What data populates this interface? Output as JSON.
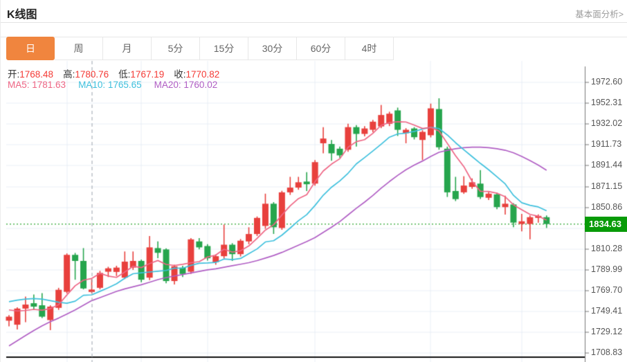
{
  "header": {
    "title": "K线图",
    "link": "基本面分析>"
  },
  "tabs": {
    "items": [
      "日",
      "周",
      "月",
      "5分",
      "15分",
      "30分",
      "60分",
      "4时"
    ],
    "active_index": 0
  },
  "quote": {
    "items": [
      {
        "label": "开:",
        "value": "1768.48"
      },
      {
        "label": "高:",
        "value": "1780.76"
      },
      {
        "label": "低:",
        "value": "1767.19"
      },
      {
        "label": "收:",
        "value": "1770.82"
      }
    ],
    "value_color": "#f43a35"
  },
  "ma_legend": [
    {
      "key": "ma5",
      "label": "MA5:",
      "value": "1781.63",
      "color": "#ee6584"
    },
    {
      "key": "ma10",
      "label": "MA10:",
      "value": "1765.65",
      "color": "#3ec0dd"
    },
    {
      "key": "ma20",
      "label": "MA20:",
      "value": "1760.02",
      "color": "#b05ec4"
    }
  ],
  "chart_data": {
    "type": "candlestick",
    "title": "K线图",
    "y_ticks": [
      1972.6,
      1952.31,
      1932.02,
      1911.73,
      1891.44,
      1871.15,
      1850.86,
      1830.57,
      1810.28,
      1789.99,
      1769.7,
      1749.41,
      1729.12,
      1708.83
    ],
    "ylim": [
      1700,
      1980
    ],
    "current_price": 1834.63,
    "crosshair_index": 10,
    "vgrid_indices": [
      7,
      16,
      24,
      37,
      51,
      62
    ],
    "grid": "on",
    "colors": {
      "up": "#e8403d",
      "down": "#26a54d",
      "ma5": "#ee6584",
      "ma10": "#3ec0dd",
      "ma20": "#b05ec4",
      "grid": "#e8eef6",
      "axis": "#777777",
      "tick_label": "#555555",
      "price_line": "#4db34f",
      "badge_bg": "#089b08",
      "badge_text": "#ffffff",
      "crosshair": "#9aa2ac",
      "base_line": "#111111",
      "active_tab": "#f0853e"
    },
    "candles_format": [
      "open",
      "high",
      "low",
      "close"
    ],
    "candles": [
      [
        1740.5,
        1746,
        1735,
        1744.4
      ],
      [
        1736.6,
        1753.5,
        1732,
        1752.3
      ],
      [
        1752.3,
        1764,
        1739,
        1756.2
      ],
      [
        1757.5,
        1766,
        1751,
        1754.2
      ],
      [
        1755.5,
        1767.3,
        1743,
        1744.4
      ],
      [
        1741.1,
        1755.5,
        1731.3,
        1754.2
      ],
      [
        1753,
        1772.5,
        1751,
        1770.6
      ],
      [
        1768.6,
        1806,
        1767,
        1804.6
      ],
      [
        1804.6,
        1806.5,
        1780.4,
        1798.7
      ],
      [
        1798.7,
        1811.2,
        1771,
        1771.9
      ],
      [
        1768.48,
        1780.76,
        1767.19,
        1770.82
      ],
      [
        1772.5,
        1789,
        1771,
        1787
      ],
      [
        1788.2,
        1793,
        1783,
        1791.5
      ],
      [
        1788,
        1794,
        1784,
        1792.2
      ],
      [
        1782.4,
        1807.9,
        1781,
        1798
      ],
      [
        1792.2,
        1807.9,
        1790,
        1798.7
      ],
      [
        1798.7,
        1800,
        1778,
        1780.4
      ],
      [
        1782.4,
        1823,
        1780,
        1811.9
      ],
      [
        1811.2,
        1817.7,
        1801.3,
        1806.6
      ],
      [
        1809.9,
        1811,
        1777,
        1779.1
      ],
      [
        1779.1,
        1795,
        1775.8,
        1793.5
      ],
      [
        1792.2,
        1794,
        1783,
        1786
      ],
      [
        1788.2,
        1821,
        1786,
        1819.7
      ],
      [
        1817.7,
        1821,
        1810,
        1811.9
      ],
      [
        1813.2,
        1815,
        1799,
        1801.3
      ],
      [
        1797.4,
        1805,
        1795,
        1803.3
      ],
      [
        1803.3,
        1834.1,
        1801,
        1814.5
      ],
      [
        1814.5,
        1816,
        1798.7,
        1805.3
      ],
      [
        1805.3,
        1820,
        1803,
        1818.4
      ],
      [
        1817.7,
        1831.5,
        1815,
        1824.9
      ],
      [
        1824.9,
        1842,
        1823,
        1840.6
      ],
      [
        1832.8,
        1864.2,
        1830,
        1854.4
      ],
      [
        1854.4,
        1856,
        1825,
        1831.5
      ],
      [
        1830.8,
        1867,
        1829,
        1865.5
      ],
      [
        1865.5,
        1880.6,
        1863,
        1870.1
      ],
      [
        1870.1,
        1880.6,
        1868,
        1875.3
      ],
      [
        1876,
        1885.1,
        1866.8,
        1873.4
      ],
      [
        1874,
        1897,
        1872,
        1894.9
      ],
      [
        1913.3,
        1929,
        1903.5,
        1917.9
      ],
      [
        1912.6,
        1916.5,
        1896.3,
        1903.5
      ],
      [
        1908,
        1910,
        1899,
        1901.5
      ],
      [
        1907,
        1932.3,
        1905,
        1929
      ],
      [
        1929,
        1931,
        1910,
        1922.4
      ],
      [
        1922.4,
        1930,
        1920,
        1927.7
      ],
      [
        1926.4,
        1936,
        1924,
        1934.3
      ],
      [
        1929.7,
        1950.6,
        1928,
        1940.8
      ],
      [
        1932.3,
        1944,
        1930,
        1942.1
      ],
      [
        1945.3,
        1948,
        1920.4,
        1926.4
      ],
      [
        1923.1,
        1928,
        1913.3,
        1926.4
      ],
      [
        1927.7,
        1929,
        1917,
        1919.2
      ],
      [
        1916.5,
        1926,
        1896.9,
        1924.4
      ],
      [
        1921.1,
        1951.9,
        1919,
        1947.3
      ],
      [
        1946.6,
        1957.1,
        1907,
        1909.4
      ],
      [
        1908,
        1910,
        1861,
        1865.5
      ],
      [
        1866.8,
        1880.6,
        1857,
        1858.9
      ],
      [
        1865.5,
        1881.2,
        1864,
        1872.1
      ],
      [
        1870.8,
        1879,
        1869,
        1875.3
      ],
      [
        1874,
        1887.1,
        1859,
        1860.9
      ],
      [
        1860.2,
        1866,
        1858,
        1864.2
      ],
      [
        1863.5,
        1865,
        1849,
        1851.1
      ],
      [
        1851.1,
        1862.2,
        1843.9,
        1854.4
      ],
      [
        1853.7,
        1855,
        1831.5,
        1836
      ],
      [
        1834.7,
        1844.5,
        1827.5,
        1837.3
      ],
      [
        1834.7,
        1843,
        1819.7,
        1841.3
      ],
      [
        1840.6,
        1844,
        1836,
        1842.6
      ],
      [
        1841.3,
        1843,
        1830.8,
        1834.63
      ]
    ],
    "ma5": [
      1751,
      1750,
      1750.5,
      1751.5,
      1750.7,
      1752.3,
      1756,
      1765.6,
      1774.5,
      1780,
      1781.63,
      1786.6,
      1784,
      1782.7,
      1787.9,
      1793.5,
      1792.2,
      1796.2,
      1799.1,
      1795.3,
      1794.3,
      1795.4,
      1797,
      1798,
      1802.5,
      1804.4,
      1810.1,
      1807.3,
      1808.6,
      1813.3,
      1820.7,
      1828.7,
      1834,
      1843.4,
      1852.4,
      1859.4,
      1863.2,
      1875.8,
      1886.3,
      1893,
      1898.2,
      1909.4,
      1914.9,
      1916.8,
      1923,
      1930.8,
      1933.5,
      1934.3,
      1934,
      1931,
      1927.7,
      1928.7,
      1925.3,
      1913.2,
      1901.1,
      1890.6,
      1876.2,
      1866.5,
      1866.3,
      1864.7,
      1861.2,
      1853.3,
      1848.6,
      1844,
      1842.3,
      1838.4
    ],
    "ma10": [
      1759,
      1760.5,
      1761.5,
      1762,
      1761.5,
      1760,
      1758.5,
      1757.5,
      1759.5,
      1765.2,
      1765.65,
      1769.1,
      1772.6,
      1776.4,
      1781.8,
      1786.2,
      1787.2,
      1787.9,
      1788.7,
      1789.4,
      1791.7,
      1791.6,
      1794.4,
      1796.4,
      1796.7,
      1797.2,
      1800.6,
      1799.9,
      1801.1,
      1805.7,
      1810.4,
      1817.2,
      1818.4,
      1823.8,
      1830.7,
      1837.9,
      1843.8,
      1852.7,
      1862.7,
      1870.5,
      1876.6,
      1884.1,
      1893.2,
      1899.4,
      1905.8,
      1912.4,
      1919.2,
      1922.4,
      1923.2,
      1924.8,
      1927.1,
      1928.9,
      1927.6,
      1921.4,
      1913.8,
      1907,
      1900.3,
      1893.7,
      1887.5,
      1880.7,
      1873.7,
      1862.6,
      1855.4,
      1852.9,
      1851.3,
      1847.6
    ],
    "ma20": [
      1716,
      1721,
      1726,
      1731,
      1735.5,
      1739.5,
      1743,
      1747,
      1751,
      1755.5,
      1760.02,
      1763,
      1766,
      1769,
      1771.5,
      1773.5,
      1775.5,
      1778,
      1780.5,
      1782.5,
      1784,
      1785.5,
      1787,
      1788.5,
      1790,
      1791,
      1792.5,
      1794,
      1795.5,
      1797,
      1799,
      1801.5,
      1804,
      1807,
      1810.5,
      1814,
      1817.5,
      1821.5,
      1826.5,
      1831.5,
      1837,
      1843.5,
      1850,
      1856,
      1862.5,
      1869.5,
      1876,
      1882,
      1887.5,
      1892,
      1896,
      1900.5,
      1904.5,
      1906.5,
      1908,
      1909,
      1909.5,
      1909.5,
      1909,
      1908,
      1906.5,
      1904,
      1900.5,
      1896.5,
      1892,
      1887
    ]
  }
}
